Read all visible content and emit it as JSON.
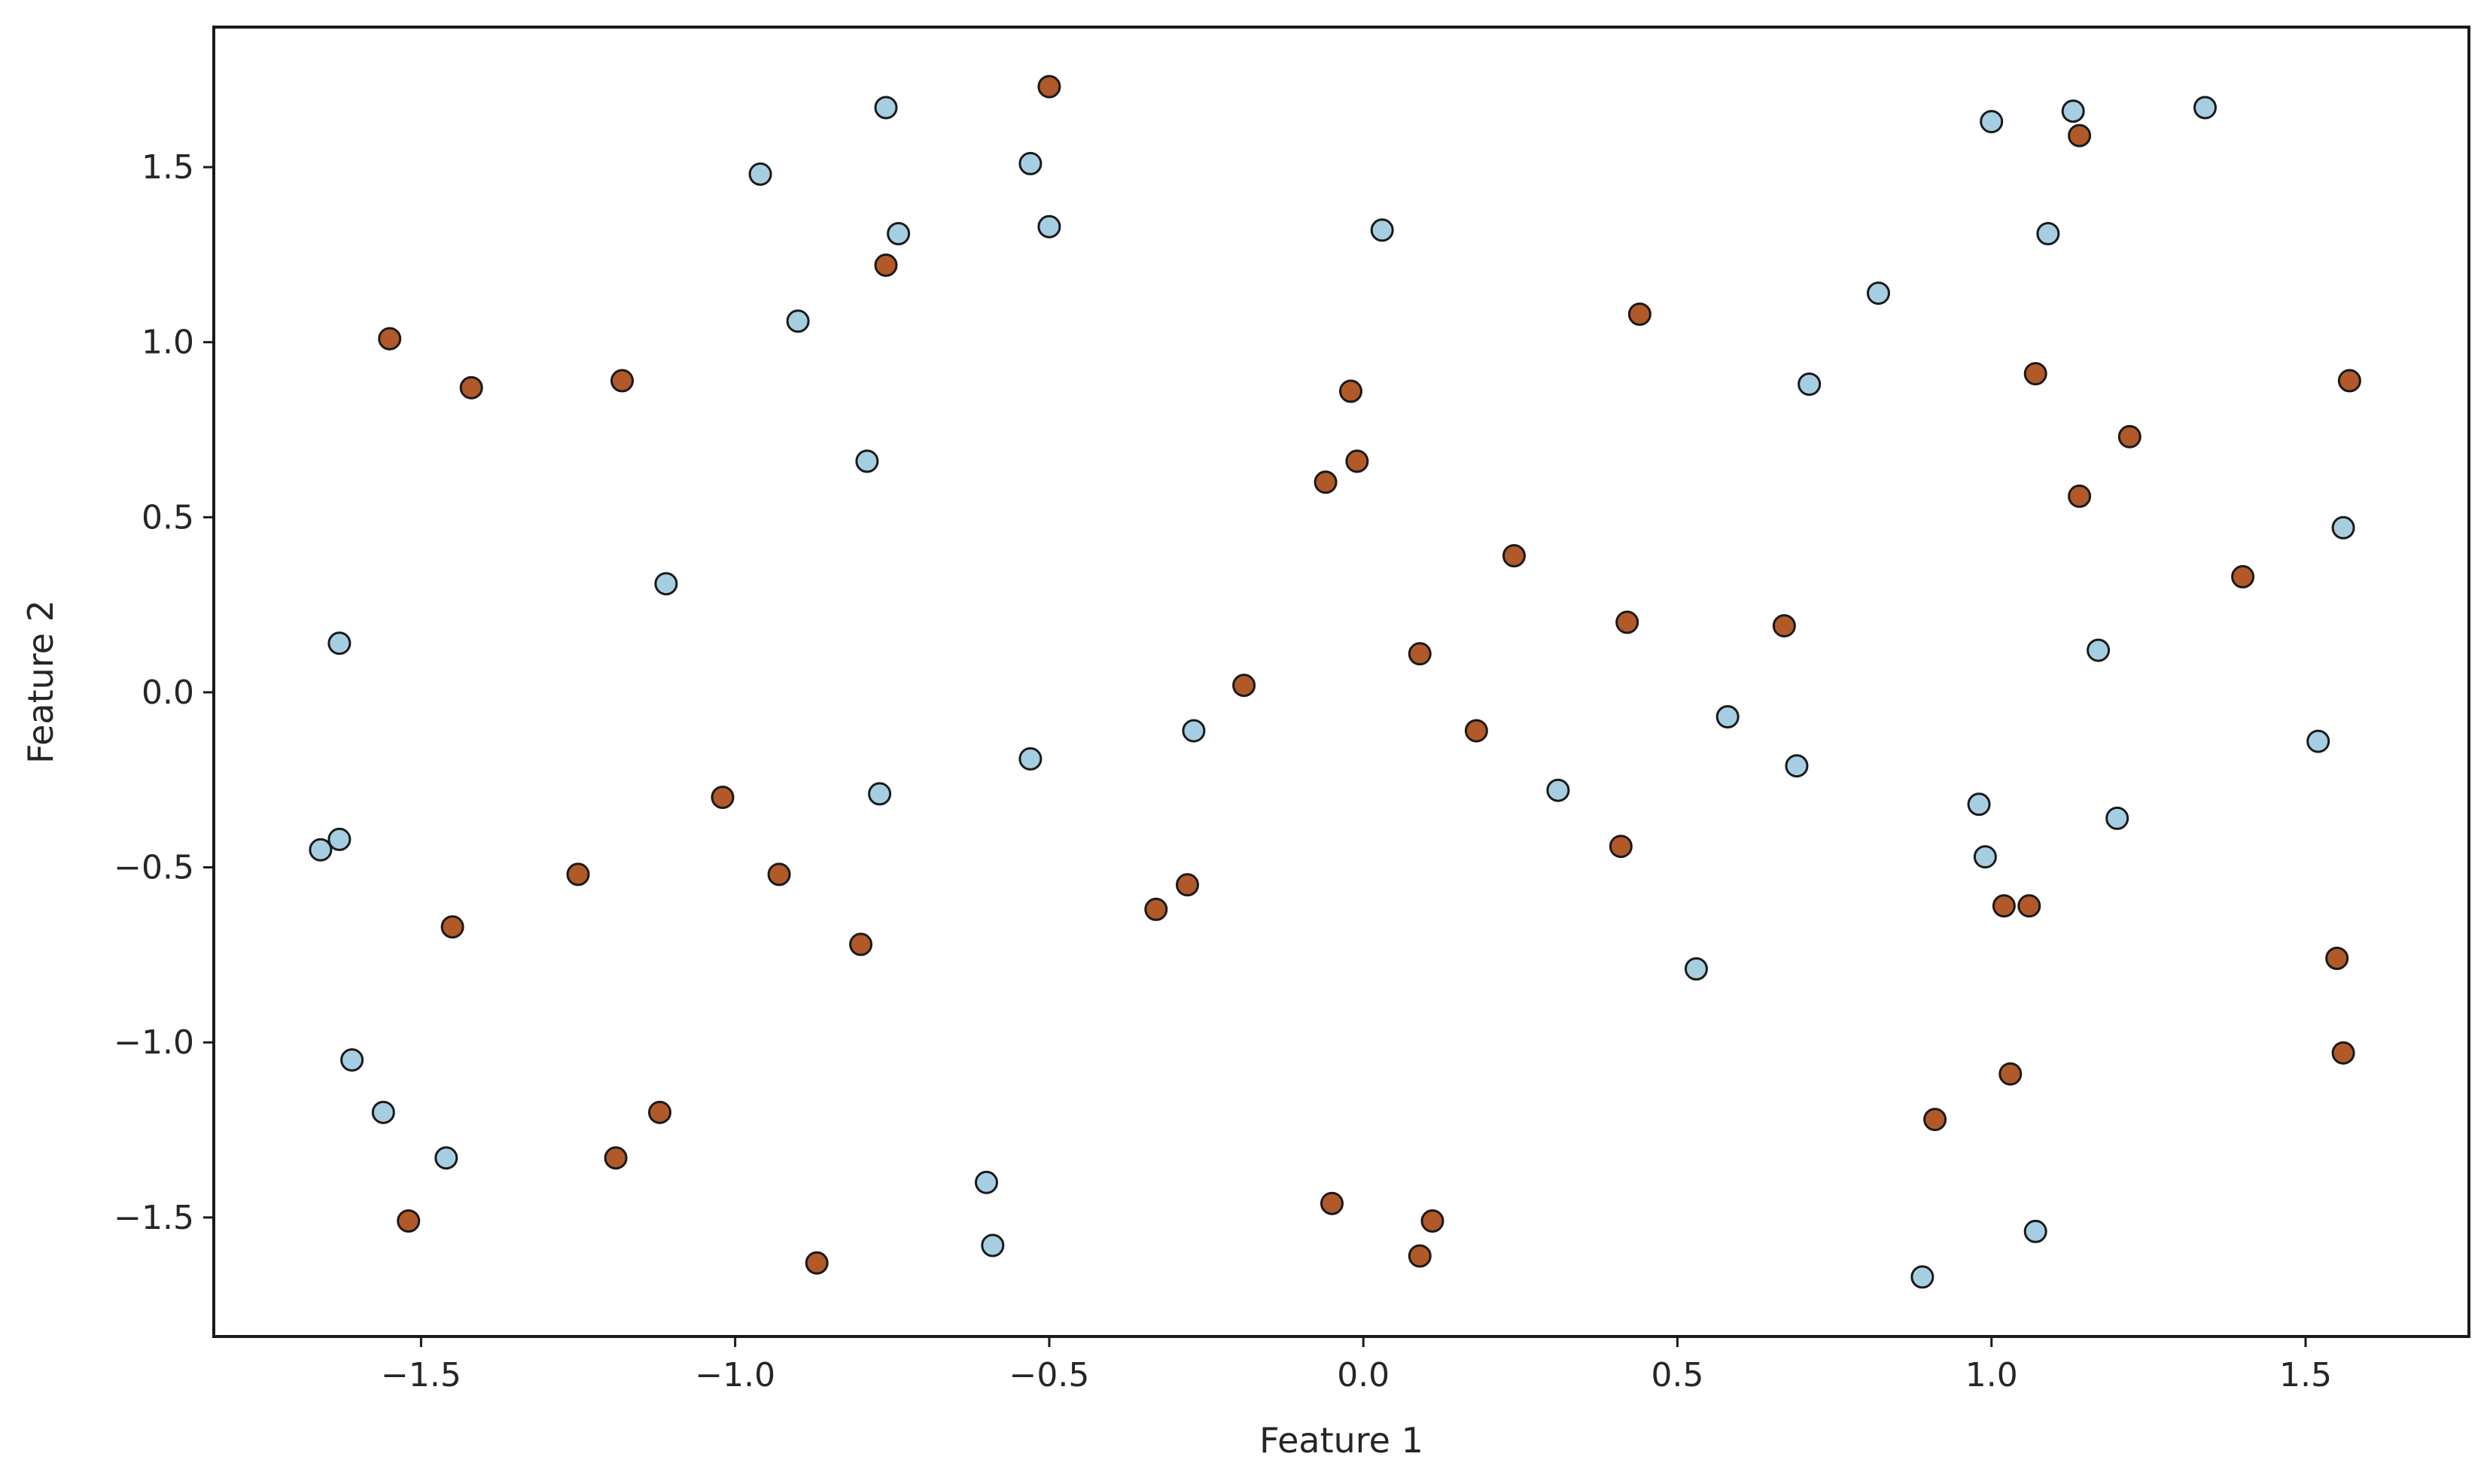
{
  "chart_data": {
    "type": "scatter",
    "title": "",
    "xlabel": "Feature 1",
    "ylabel": "Feature 2",
    "xlim": [
      -1.83,
      1.76
    ],
    "ylim": [
      -1.84,
      1.9
    ],
    "xticks": [
      -1.5,
      -1.0,
      -0.5,
      0.0,
      0.5,
      1.0,
      1.5
    ],
    "yticks": [
      -1.5,
      -1.0,
      -0.5,
      0.0,
      0.5,
      1.0,
      1.5
    ],
    "xtick_labels": [
      "−1.5",
      "−1.0",
      "−0.5",
      "0.0",
      "0.5",
      "1.0",
      "1.5"
    ],
    "ytick_labels": [
      "−1.5",
      "−1.0",
      "−0.5",
      "0.0",
      "0.5",
      "1.0",
      "1.5"
    ],
    "grid": false,
    "legend": "none",
    "colors": {
      "class_0": "#a6cee3",
      "class_1": "#b15928",
      "edge": "#1a1a1a",
      "axes": "#1a1a1a"
    },
    "series": [
      {
        "class": 0,
        "color": "#a6cee3",
        "points": [
          [
            -0.76,
            1.67
          ],
          [
            -0.96,
            1.48
          ],
          [
            -0.53,
            1.51
          ],
          [
            -0.74,
            1.31
          ],
          [
            -0.5,
            1.33
          ],
          [
            -0.9,
            1.06
          ],
          [
            -0.79,
            0.66
          ],
          [
            -1.11,
            0.31
          ],
          [
            -1.63,
            0.14
          ],
          [
            -1.66,
            -0.45
          ],
          [
            -1.63,
            -0.42
          ],
          [
            -0.77,
            -0.29
          ],
          [
            -0.53,
            -0.19
          ],
          [
            -0.27,
            -0.11
          ],
          [
            0.03,
            1.32
          ],
          [
            -1.61,
            -1.05
          ],
          [
            -1.56,
            -1.2
          ],
          [
            -1.46,
            -1.33
          ],
          [
            -0.6,
            -1.4
          ],
          [
            -0.59,
            -1.58
          ],
          [
            0.31,
            -0.28
          ],
          [
            0.58,
            -0.07
          ],
          [
            0.69,
            -0.21
          ],
          [
            0.53,
            -0.79
          ],
          [
            0.82,
            1.14
          ],
          [
            0.71,
            0.88
          ],
          [
            1.0,
            1.63
          ],
          [
            1.13,
            1.66
          ],
          [
            1.34,
            1.67
          ],
          [
            1.09,
            1.31
          ],
          [
            1.56,
            0.47
          ],
          [
            1.17,
            0.12
          ],
          [
            1.52,
            -0.14
          ],
          [
            0.98,
            -0.32
          ],
          [
            1.2,
            -0.36
          ],
          [
            0.99,
            -0.47
          ],
          [
            1.07,
            -1.54
          ],
          [
            0.89,
            -1.67
          ]
        ]
      },
      {
        "class": 1,
        "color": "#b15928",
        "points": [
          [
            -0.5,
            1.73
          ],
          [
            -0.76,
            1.22
          ],
          [
            -1.55,
            1.01
          ],
          [
            -1.42,
            0.87
          ],
          [
            -1.18,
            0.89
          ],
          [
            -1.02,
            -0.3
          ],
          [
            -1.25,
            -0.52
          ],
          [
            -0.93,
            -0.52
          ],
          [
            -1.45,
            -0.67
          ],
          [
            -0.8,
            -0.72
          ],
          [
            -1.12,
            -1.2
          ],
          [
            -1.19,
            -1.33
          ],
          [
            -1.52,
            -1.51
          ],
          [
            -0.87,
            -1.63
          ],
          [
            -0.02,
            0.86
          ],
          [
            -0.06,
            0.6
          ],
          [
            -0.01,
            0.66
          ],
          [
            0.24,
            0.39
          ],
          [
            0.09,
            0.11
          ],
          [
            -0.19,
            0.02
          ],
          [
            0.18,
            -0.11
          ],
          [
            -0.28,
            -0.55
          ],
          [
            -0.33,
            -0.62
          ],
          [
            -0.05,
            -1.46
          ],
          [
            0.11,
            -1.51
          ],
          [
            0.09,
            -1.61
          ],
          [
            0.44,
            1.08
          ],
          [
            0.42,
            0.2
          ],
          [
            0.67,
            0.19
          ],
          [
            0.41,
            -0.44
          ],
          [
            1.07,
            0.91
          ],
          [
            1.22,
            0.73
          ],
          [
            1.14,
            0.56
          ],
          [
            1.4,
            0.33
          ],
          [
            1.57,
            0.89
          ],
          [
            1.14,
            1.59
          ],
          [
            1.02,
            -0.61
          ],
          [
            1.06,
            -0.61
          ],
          [
            1.55,
            -0.76
          ],
          [
            1.56,
            -1.03
          ],
          [
            1.03,
            -1.09
          ],
          [
            0.91,
            -1.22
          ]
        ]
      }
    ]
  }
}
